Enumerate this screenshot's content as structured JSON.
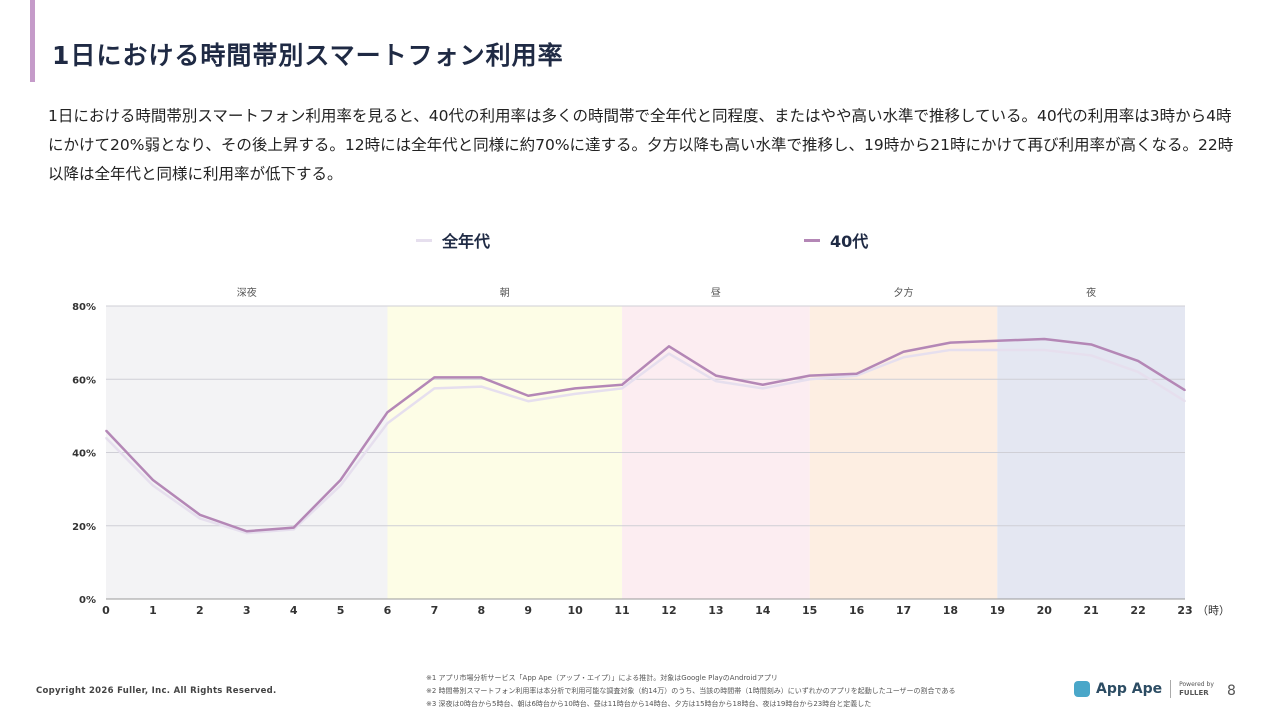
{
  "page": {
    "title": "1日における時間帯別スマートフォン利用率",
    "description": "1日における時間帯別スマートフォン利用率を見ると、40代の利用率は多くの時間帯で全年代と同程度、またはやや高い水準で推移している。40代の利用率は3時から4時にかけて20%弱となり、その後上昇する。12時には全年代と同様に約70%に達する。夕方以降も高い水準で推移し、19時から21時にかけて再び利用率が高くなる。22時以降は全年代と同様に利用率が低下する。"
  },
  "legend": [
    {
      "label": "全年代",
      "color": "#e6dfee"
    },
    {
      "label": "40代",
      "color": "#b487b6"
    }
  ],
  "chart_data": {
    "type": "line",
    "x": [
      0,
      1,
      2,
      3,
      4,
      5,
      6,
      7,
      8,
      9,
      10,
      11,
      12,
      13,
      14,
      15,
      16,
      17,
      18,
      19,
      20,
      21,
      22,
      23
    ],
    "x_unit_label": "（時）",
    "ylim": [
      0,
      80
    ],
    "yticks": [
      0,
      20,
      40,
      60,
      80
    ],
    "ytick_labels": [
      "0%",
      "20%",
      "40%",
      "60%",
      "80%"
    ],
    "grid": true,
    "legend_position": "top-center",
    "series": [
      {
        "name": "全年代",
        "color": "#e6dfee",
        "values": [
          44,
          31,
          22,
          18,
          19,
          31,
          48,
          57.5,
          58,
          54,
          56,
          57.5,
          67,
          59.5,
          57.5,
          60,
          61,
          66,
          68,
          68,
          68,
          66.5,
          62,
          54
        ]
      },
      {
        "name": "40代",
        "color": "#b487b6",
        "values": [
          46,
          32.5,
          23,
          18.5,
          19.5,
          32.5,
          51,
          60.5,
          60.5,
          55.5,
          57.5,
          58.5,
          69,
          61,
          58.5,
          61,
          61.5,
          67.5,
          70,
          70.5,
          71,
          69.5,
          65,
          57
        ]
      }
    ],
    "bands": [
      {
        "label": "深夜",
        "from": 0,
        "to": 6,
        "color": "#f3f3f5"
      },
      {
        "label": "朝",
        "from": 6,
        "to": 11,
        "color": "#fdfde6"
      },
      {
        "label": "昼",
        "from": 11,
        "to": 15,
        "color": "#fcedf1"
      },
      {
        "label": "夕方",
        "from": 15,
        "to": 19,
        "color": "#fdeee2"
      },
      {
        "label": "夜",
        "from": 19,
        "to": 23,
        "color": "#e4e7f2"
      }
    ]
  },
  "footer": {
    "copyright": "Copyright 2026 Fuller, Inc. All Rights Reserved.",
    "notes": [
      "※1 アプリ市場分析サービス「App Ape（アップ・エイプ）」による推計。対象はGoogle PlayのAndroidアプリ",
      "※2 時間帯別スマートフォン利用率は本分析で利用可能な調査対象（約14万）のうち、当該の時間帯（1時間刻み）にいずれかのアプリを起動したユーザーの割合である",
      "※3 深夜は0時台から5時台、朝は6時台から10時台、昼は11時台から14時台、夕方は15時台から18時台、夜は19時台から23時台と定義した"
    ],
    "brand": "App Ape",
    "brand_sub": "Powered by",
    "brand_company": "FULLER",
    "page_number": "8"
  }
}
